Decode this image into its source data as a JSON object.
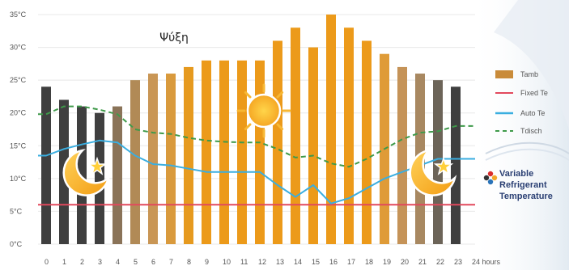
{
  "chart_data": {
    "type": "bar",
    "title": "Ψύξη",
    "x": [
      0,
      1,
      2,
      3,
      4,
      5,
      6,
      7,
      8,
      9,
      10,
      11,
      12,
      13,
      14,
      15,
      16,
      17,
      18,
      19,
      20,
      21,
      22,
      23
    ],
    "x_tick_labels": [
      "0",
      "1",
      "2",
      "3",
      "4",
      "5",
      "6",
      "7",
      "8",
      "9",
      "10",
      "11",
      "12",
      "13",
      "14",
      "15",
      "16",
      "17",
      "18",
      "19",
      "20",
      "21",
      "22",
      "23",
      "24 hours"
    ],
    "y_tick_labels": [
      "0°C",
      "5°C",
      "10°C",
      "15°C",
      "20°C",
      "25°C",
      "30°C",
      "35°C"
    ],
    "ylim": [
      0,
      35
    ],
    "grid": true,
    "legend_position": "right",
    "series": [
      {
        "name": "Tamb",
        "kind": "bar",
        "values": [
          24,
          22,
          21,
          20,
          21,
          25,
          26,
          26,
          27,
          28,
          28,
          28,
          28,
          31,
          33,
          30,
          35,
          33,
          31,
          29,
          27,
          26,
          25,
          24
        ],
        "bar_colors": [
          "#3f3f3f",
          "#3f3f3f",
          "#3f3f3f",
          "#3f3f3f",
          "#8a7358",
          "#b18a56",
          "#c99655",
          "#d99a3d",
          "#e69a1f",
          "#ec9a1a",
          "#ec9a1a",
          "#ec9a1a",
          "#ec9a1a",
          "#ec9a1a",
          "#ec9a1a",
          "#ec9a1a",
          "#ec9a1a",
          "#ec9a1a",
          "#ec9a1a",
          "#df9b37",
          "#c59358",
          "#a88861",
          "#6c6458",
          "#3f3f3f"
        ]
      },
      {
        "name": "Fixed Te",
        "kind": "line",
        "color": "#e2495d",
        "values": [
          6,
          6,
          6,
          6,
          6,
          6,
          6,
          6,
          6,
          6,
          6,
          6,
          6,
          6,
          6,
          6,
          6,
          6,
          6,
          6,
          6,
          6,
          6,
          6
        ]
      },
      {
        "name": "Auto Te",
        "kind": "line",
        "color": "#3aaee0",
        "values": [
          13.5,
          14.5,
          15.2,
          15.8,
          15.5,
          13.5,
          12.2,
          12,
          11.5,
          11,
          11,
          11,
          11,
          9,
          7.2,
          9,
          6.2,
          7,
          8.5,
          10,
          11,
          12,
          13,
          13
        ]
      },
      {
        "name": "Tdisch",
        "kind": "line",
        "style": "dashed",
        "color": "#3f9a4a",
        "values": [
          19.8,
          21,
          21,
          20.5,
          19.8,
          17.5,
          17,
          16.8,
          16.2,
          15.8,
          15.6,
          15.5,
          15.5,
          14.5,
          13.2,
          13.5,
          12.3,
          11.8,
          13,
          14.5,
          16,
          17,
          17.2,
          18
        ]
      }
    ],
    "annotations": [
      "sun-icon",
      "moon-star-icon",
      "moon-star-icon"
    ]
  },
  "legend": {
    "items": [
      {
        "label": "Tamb",
        "color": "#c98b3a"
      },
      {
        "label": "Fixed Te",
        "color": "#e2495d"
      },
      {
        "label": "Auto Te",
        "color": "#3aaee0"
      },
      {
        "label": "Tdisch",
        "color": "#3f9a4a"
      }
    ]
  },
  "brand": {
    "lines": [
      "Variable",
      "Refrigerant",
      "Temperature"
    ],
    "colors": [
      "#d92d2d",
      "#f2a72b",
      "#2a73b8",
      "#333333"
    ]
  },
  "colors": {
    "grid": "#e8e8e8",
    "axis_text": "#555555",
    "background": "#ffffff"
  }
}
